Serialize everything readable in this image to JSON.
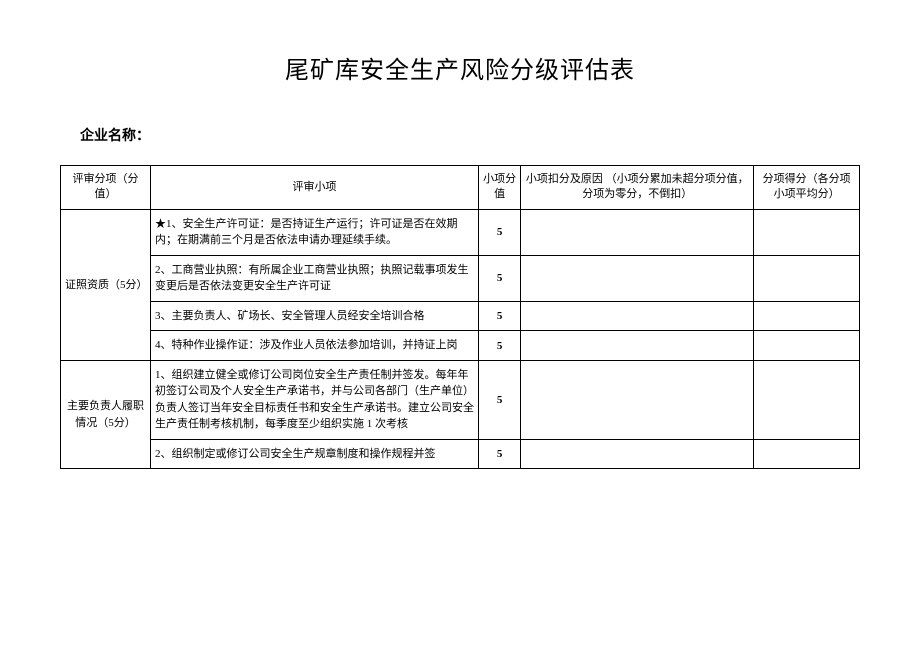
{
  "title": "尾矿库安全生产风险分级评估表",
  "company_label": "企业名称：",
  "headers": {
    "category": "评审分项（分值）",
    "item": "评审小项",
    "item_score": "小项分值",
    "deduction": "小项扣分及原因\n（小项分累加未超分项分值，分项为零分，不倒扣）",
    "avg_score": "分项得分（各分项小项平均分）"
  },
  "sections": [
    {
      "name": "证照资质（5分）",
      "rows": [
        {
          "text": "★1、安全生产许可证：是否持证生产运行；许可证是否在效期内；在期满前三个月是否依法申请办理延续手续。",
          "score": "5"
        },
        {
          "text": "2、工商营业执照：有所属企业工商营业执照；执照记载事项发生变更后是否依法变更安全生产许可证",
          "score": "5"
        },
        {
          "text": "3、主要负责人、矿场长、安全管理人员经安全培训合格",
          "score": "5"
        },
        {
          "text": "4、特种作业操作证：涉及作业人员依法参加培训，并持证上岗",
          "score": "5"
        }
      ]
    },
    {
      "name": "主要负责人履职情况（5分）",
      "rows": [
        {
          "text": "1、组织建立健全或修订公司岗位安全生产责任制并签发。每年年初签订公司及个人安全生产承诺书，并与公司各部门（生产单位）负责人签订当年安全目标责任书和安全生产承诺书。建立公司安全生产责任制考核机制，每季度至少组织实施 1 次考核",
          "score": "5"
        },
        {
          "text": "2、组织制定或修订公司安全生产规章制度和操作规程并签",
          "score": "5"
        }
      ]
    }
  ]
}
